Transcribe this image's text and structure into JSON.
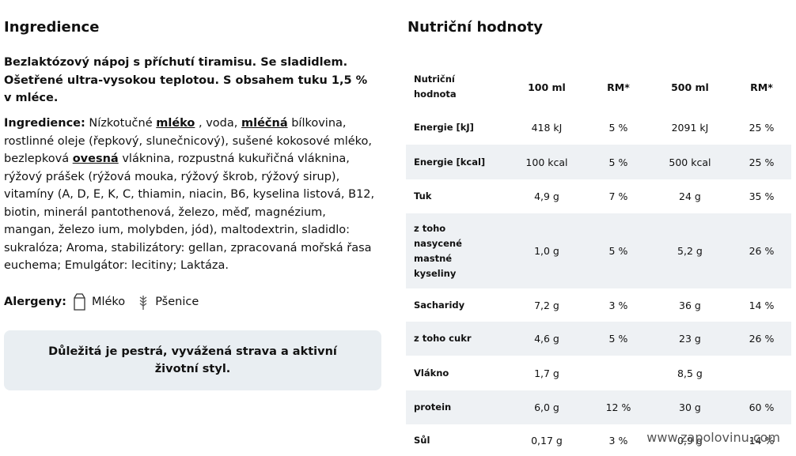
{
  "left": {
    "title": "Ingredience",
    "description": "Bezlaktózový nápoj s příchutí tiramisu. Se sladidlem. Ošetřené ultra-vysokou teplotou. S obsahem tuku 1,5 % v mléce.",
    "ingredients": {
      "label": "Ingredience:",
      "parts": [
        " Nízkotučné ",
        "mléko",
        " , voda, ",
        "mléčná",
        " bílkovina, rostlinné oleje (řepkový, slunečnicový), sušené kokosové mléko, bezlepková ",
        "ovesná",
        " vláknina, rozpustná kukuřičná vláknina, rýžový prášek (rýžová mouka, rýžový škrob, rýžový sirup), vitamíny (A, D, E, K, C, thiamin, niacin, B6, kyselina listová, B12, biotin, minerál pantothenová, železo, měď, magnézium, mangan, železo ium, molybden, jód), maltodextrin, sladidlo: sukralóza; Aroma, stabilizátory: gellan, zpracovaná mořská řasa euchema; Emulgátor: lecitiny; Laktáza."
      ]
    },
    "allergens": {
      "label": "Alergeny:",
      "items": [
        "Mléko",
        "Pšenice"
      ]
    },
    "note": "Důležitá je pestrá, vyvážená strava a aktivní životní styl."
  },
  "right": {
    "title": "Nutriční hodnoty",
    "table": {
      "header": [
        "Nutriční hodnota",
        "100 ml",
        "RM*",
        "500 ml",
        "RM*"
      ],
      "rows": [
        [
          "Energie [kJ]",
          "418 kJ",
          "5 %",
          "2091 kJ",
          "25 %"
        ],
        [
          "Energie [kcal]",
          "100 kcal",
          "5 %",
          "500 kcal",
          "25 %"
        ],
        [
          "Tuk",
          "4,9 g",
          "7 %",
          "24 g",
          "35 %"
        ],
        [
          "z toho nasycené mastné kyseliny",
          "1,0 g",
          "5 %",
          "5,2 g",
          "26 %"
        ],
        [
          "Sacharidy",
          "7,2 g",
          "3 %",
          "36 g",
          "14 %"
        ],
        [
          "z toho cukr",
          "4,6 g",
          "5 %",
          "23 g",
          "26 %"
        ],
        [
          "Vlákno",
          "1,7 g",
          null,
          "8,5 g",
          null
        ],
        [
          "protein",
          "6,0 g",
          "12 %",
          "30 g",
          "60 %"
        ],
        [
          "Sůl",
          "0,17 g",
          "3 %",
          "0,9 g",
          "14 %"
        ]
      ]
    }
  },
  "watermark": "www.zapolovinu.com"
}
